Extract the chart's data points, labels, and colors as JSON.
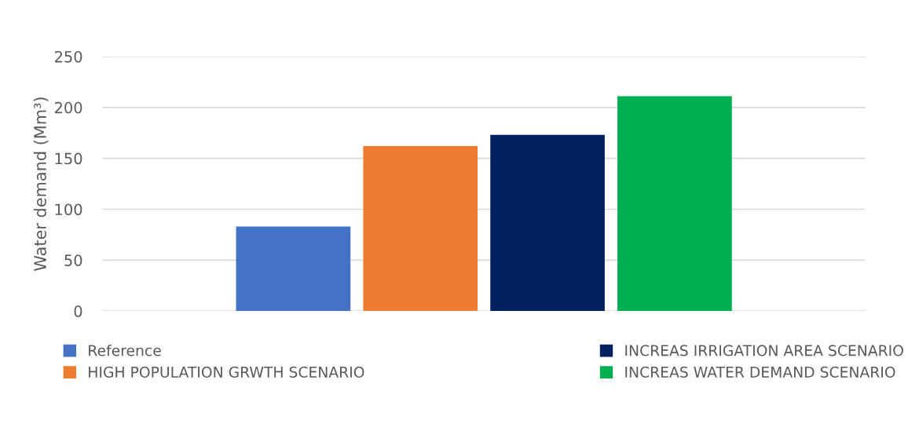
{
  "chart_data": {
    "type": "bar",
    "ylabel": "Water demand (Mm³)",
    "categories": [
      null
    ],
    "series": [
      {
        "name": "Reference",
        "color": "#4472c4",
        "values": [
          83
        ]
      },
      {
        "name": "HIGH POPULATION GRWTH SCENARIO",
        "color": "#ed7d31",
        "values": [
          162
        ]
      },
      {
        "name": "INCREAS IRRIGATION AREA SCENARIO",
        "color": "#002060",
        "values": [
          173
        ]
      },
      {
        "name": "INCREAS WATER DEMAND SCENARIO",
        "color": "#00b050",
        "values": [
          211
        ]
      }
    ],
    "ylim": [
      0,
      250
    ],
    "yticks": [
      0,
      50,
      100,
      150,
      200,
      250
    ],
    "grid": "y",
    "legend": "bottom"
  }
}
